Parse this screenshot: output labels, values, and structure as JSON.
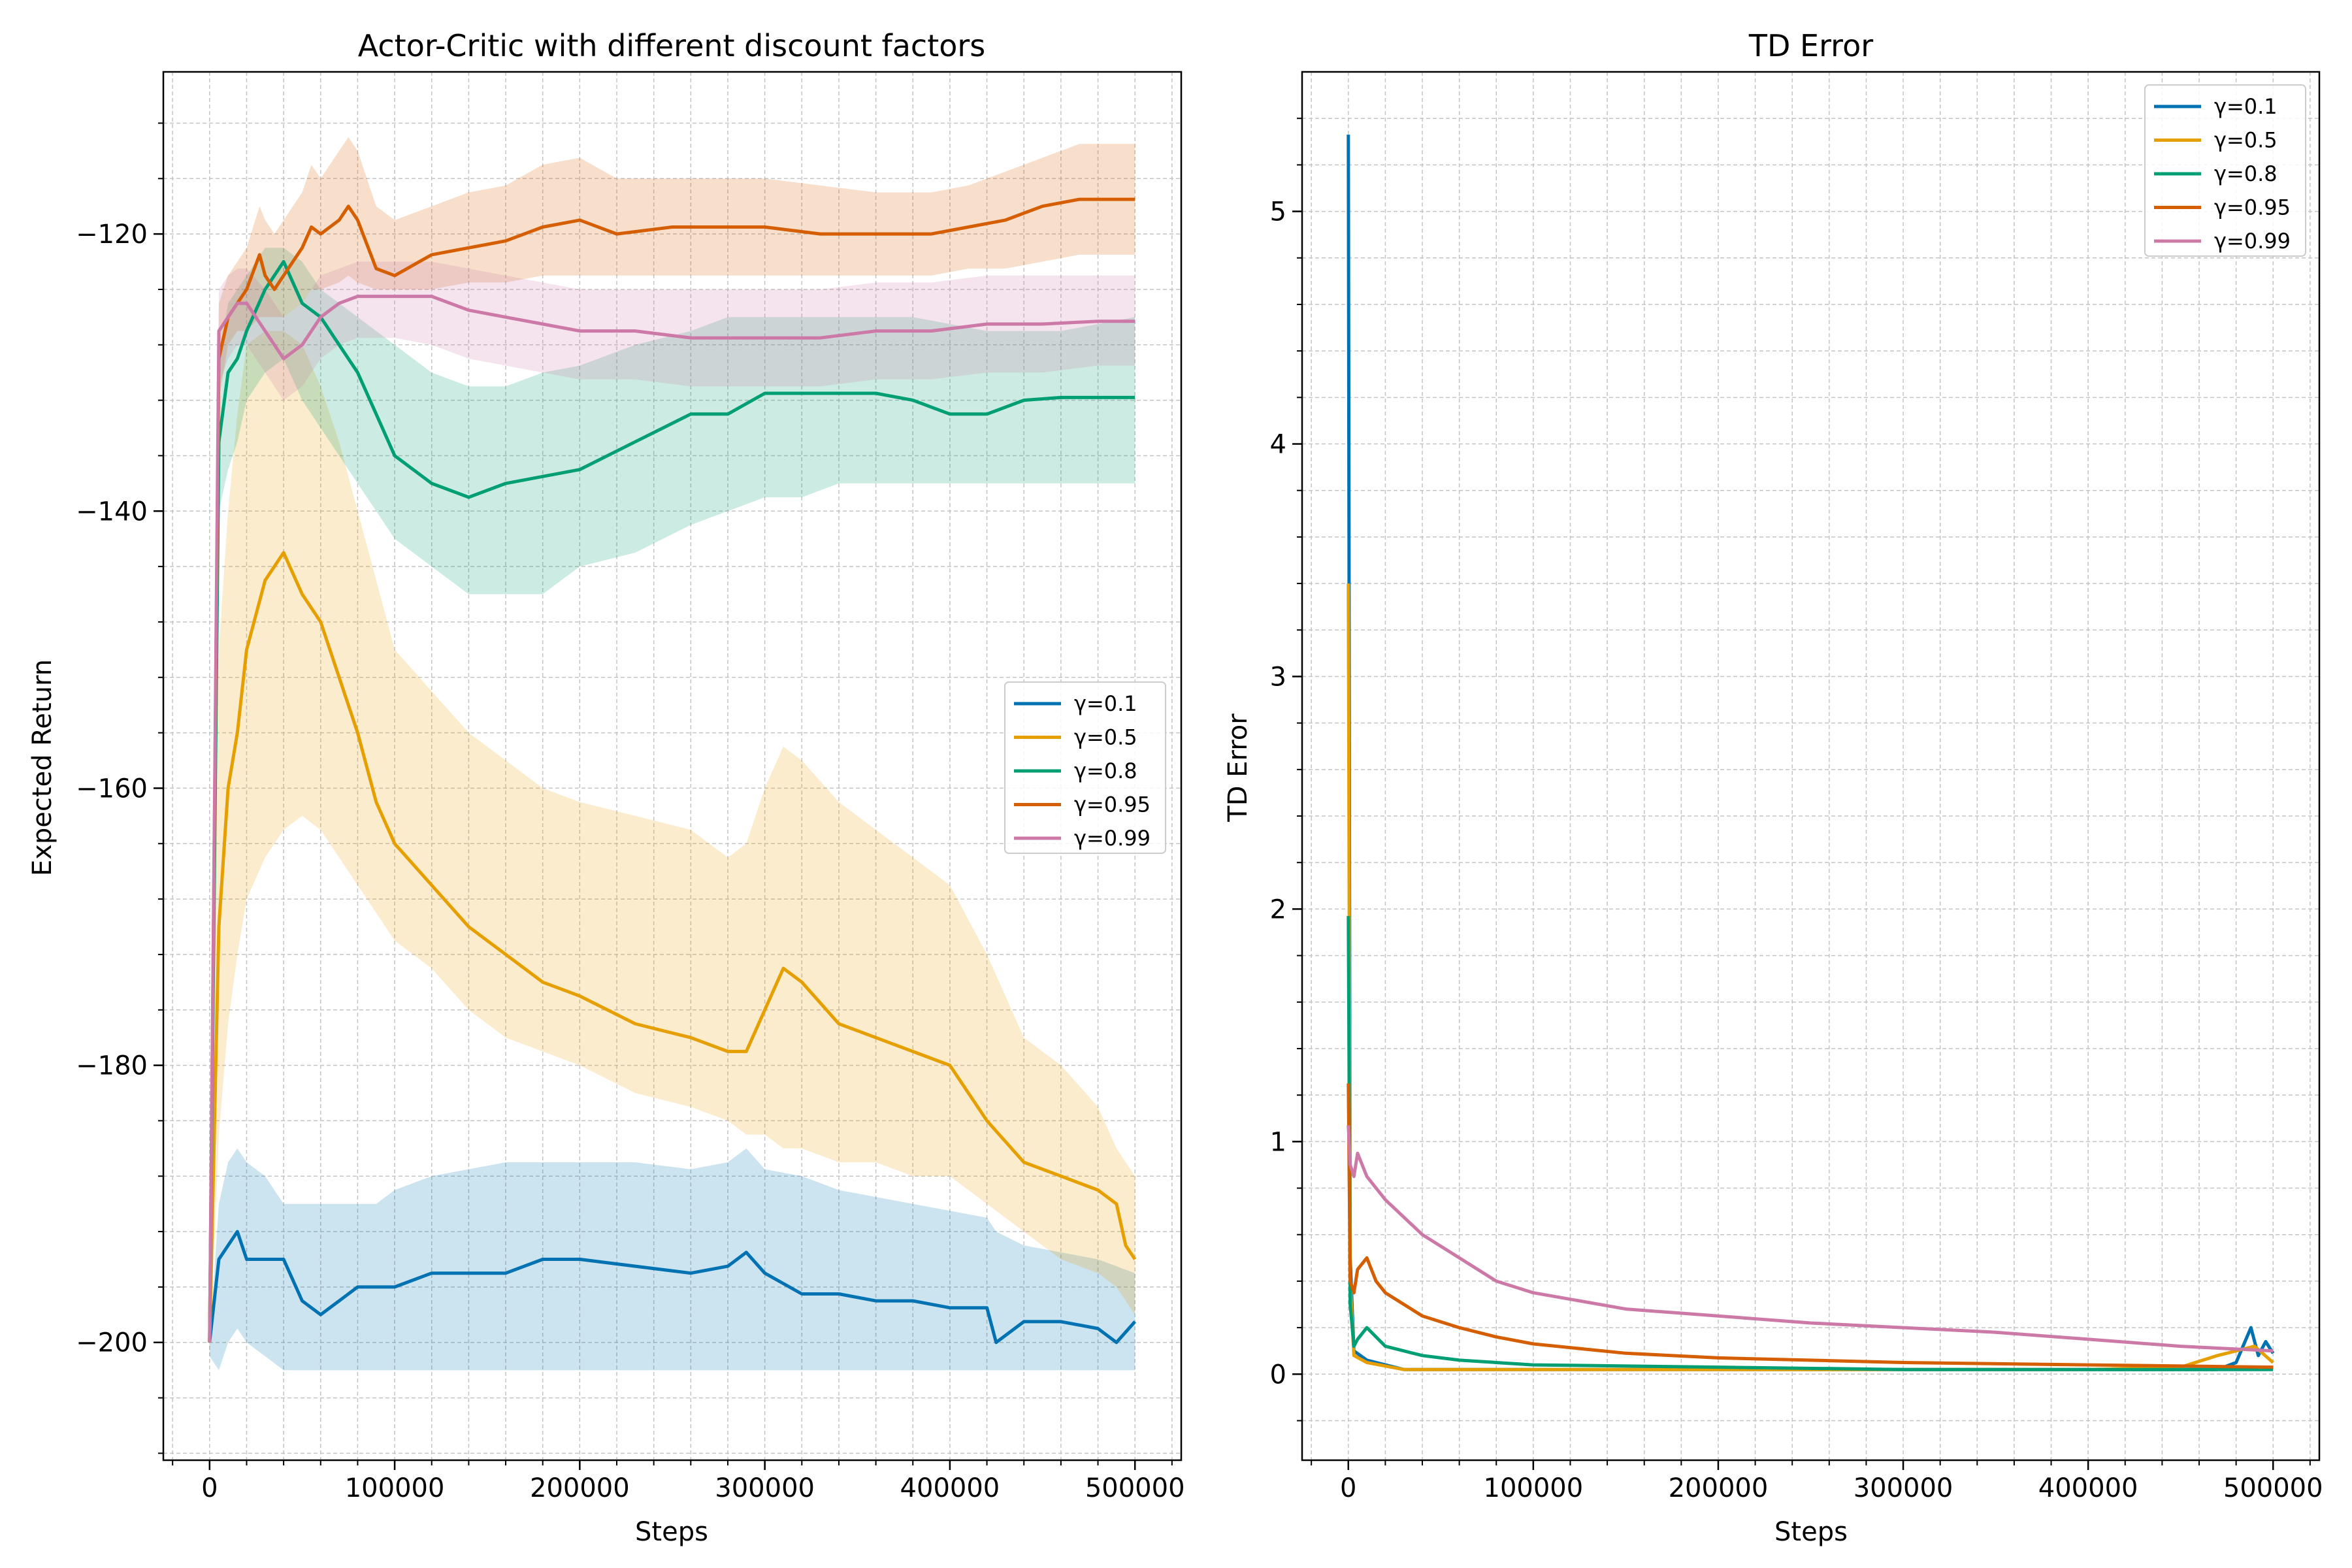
{
  "chart_data": [
    {
      "type": "line",
      "title": "Actor-Critic with different discount factors",
      "xlabel": "Steps",
      "ylabel": "Expected Return",
      "xlim": [
        -25000,
        525000
      ],
      "ylim": [
        -208.5,
        -108.3
      ],
      "xticks": [
        0,
        100000,
        200000,
        300000,
        400000,
        500000
      ],
      "yticks": [
        -120,
        -140,
        -160,
        -180,
        -200
      ],
      "grid": true,
      "minor_ticks": true,
      "legend_position": "center-right",
      "shaded_band": true,
      "series": [
        {
          "name": "γ=0.1",
          "color": "#0072b2",
          "x": [
            0,
            5000,
            10000,
            15000,
            20000,
            30000,
            40000,
            50000,
            60000,
            70000,
            80000,
            90000,
            100000,
            120000,
            140000,
            160000,
            180000,
            200000,
            230000,
            260000,
            280000,
            290000,
            300000,
            320000,
            340000,
            360000,
            380000,
            400000,
            420000,
            425000,
            440000,
            460000,
            480000,
            490000,
            500000
          ],
          "y": [
            -200,
            -194,
            -193,
            -192,
            -194,
            -194,
            -194,
            -197,
            -198,
            -197,
            -196,
            -196,
            -196,
            -195,
            -195,
            -195,
            -194,
            -194,
            -194.5,
            -195,
            -194.5,
            -193.5,
            -195,
            -196.5,
            -196.5,
            -197,
            -197,
            -197.5,
            -197.5,
            -200,
            -198.5,
            -198.5,
            -199,
            -200,
            -198.5
          ],
          "band_low": [
            -201,
            -202,
            -200,
            -199,
            -200,
            -201,
            -202,
            -202,
            -202,
            -202,
            -202,
            -202,
            -202,
            -202,
            -202,
            -202,
            -202,
            -202,
            -202,
            -202,
            -202,
            -202,
            -202,
            -202,
            -202,
            -202,
            -202,
            -202,
            -202,
            -202,
            -202,
            -202,
            -202,
            -202,
            -202
          ],
          "band_high": [
            -200,
            -190,
            -187,
            -186,
            -187,
            -188,
            -190,
            -190,
            -190,
            -190,
            -190,
            -190,
            -189,
            -188,
            -187.5,
            -187,
            -187,
            -187,
            -187,
            -187.5,
            -187,
            -186,
            -187.5,
            -188,
            -189,
            -189.5,
            -190,
            -190.5,
            -191,
            -192,
            -193,
            -193.5,
            -194,
            -194.5,
            -195
          ]
        },
        {
          "name": "γ=0.5",
          "color": "#e69f00",
          "x": [
            0,
            5000,
            10000,
            15000,
            20000,
            30000,
            40000,
            50000,
            60000,
            70000,
            80000,
            90000,
            100000,
            120000,
            140000,
            160000,
            180000,
            200000,
            230000,
            260000,
            280000,
            290000,
            300000,
            310000,
            320000,
            340000,
            360000,
            380000,
            400000,
            420000,
            440000,
            460000,
            480000,
            490000,
            495000,
            500000
          ],
          "y": [
            -200,
            -170,
            -160,
            -156,
            -150,
            -145,
            -143,
            -146,
            -148,
            -152,
            -156,
            -161,
            -164,
            -167,
            -170,
            -172,
            -174,
            -175,
            -177,
            -178,
            -179,
            -179,
            -176,
            -173,
            -174,
            -177,
            -178,
            -179,
            -180,
            -184,
            -187,
            -188,
            -189,
            -190,
            -193,
            -194
          ],
          "band_low": [
            -201,
            -185,
            -177,
            -172,
            -168,
            -165,
            -163,
            -162,
            -163,
            -165,
            -167,
            -169,
            -171,
            -173,
            -176,
            -178,
            -179,
            -180,
            -182,
            -183,
            -184,
            -185,
            -185,
            -186,
            -186,
            -187,
            -187,
            -188,
            -188,
            -190,
            -192,
            -194,
            -195,
            -196,
            -197,
            -198
          ],
          "band_high": [
            -200,
            -150,
            -140,
            -133,
            -128,
            -127,
            -127,
            -128,
            -131,
            -135,
            -140,
            -145,
            -150,
            -153,
            -156,
            -158,
            -160,
            -161,
            -162,
            -163,
            -165,
            -164,
            -160,
            -157,
            -158,
            -161,
            -163,
            -165,
            -167,
            -172,
            -178,
            -180,
            -183,
            -186,
            -187,
            -188
          ]
        },
        {
          "name": "γ=0.8",
          "color": "#009e73",
          "x": [
            0,
            5000,
            10000,
            15000,
            20000,
            30000,
            40000,
            50000,
            60000,
            70000,
            80000,
            90000,
            100000,
            120000,
            140000,
            160000,
            180000,
            200000,
            230000,
            260000,
            280000,
            300000,
            320000,
            340000,
            360000,
            380000,
            400000,
            420000,
            440000,
            460000,
            480000,
            500000
          ],
          "y": [
            -200,
            -135,
            -130,
            -129,
            -127,
            -124,
            -122,
            -125,
            -126,
            -128,
            -130,
            -133,
            -136,
            -138,
            -139,
            -138,
            -137.5,
            -137,
            -135,
            -133,
            -133,
            -131.5,
            -131.5,
            -131.5,
            -131.5,
            -132,
            -133,
            -133,
            -132,
            -131.8,
            -131.8,
            -131.8
          ],
          "band_low": [
            -201,
            -140,
            -137,
            -135,
            -132,
            -130,
            -129,
            -132,
            -134,
            -136,
            -138,
            -140,
            -142,
            -144,
            -146,
            -146,
            -146,
            -144,
            -143,
            -141,
            -140,
            -139,
            -139,
            -138,
            -138,
            -138,
            -138,
            -138,
            -138,
            -138,
            -138,
            -138
          ],
          "band_high": [
            -200,
            -129,
            -125,
            -124,
            -123,
            -121,
            -121,
            -122,
            -124,
            -125,
            -126,
            -127,
            -128,
            -130,
            -131,
            -131,
            -130,
            -129.5,
            -128,
            -127,
            -126,
            -126,
            -126,
            -126,
            -126,
            -126,
            -126.5,
            -127,
            -127,
            -127,
            -126.5,
            -126
          ]
        },
        {
          "name": "γ=0.95",
          "color": "#d55e00",
          "x": [
            0,
            5000,
            10000,
            15000,
            20000,
            27000,
            30000,
            35000,
            40000,
            50000,
            55000,
            60000,
            70000,
            75000,
            80000,
            90000,
            100000,
            120000,
            140000,
            160000,
            180000,
            200000,
            220000,
            250000,
            280000,
            300000,
            330000,
            360000,
            390000,
            410000,
            430000,
            450000,
            470000,
            490000,
            500000
          ],
          "y": [
            -200,
            -129,
            -126,
            -125,
            -124,
            -121.5,
            -123,
            -124,
            -123,
            -121,
            -119.5,
            -120,
            -119,
            -118,
            -119,
            -122.5,
            -123,
            -121.5,
            -121,
            -120.5,
            -119.5,
            -119,
            -120,
            -119.5,
            -119.5,
            -119.5,
            -120,
            -120,
            -120,
            -119.5,
            -119,
            -118,
            -117.5,
            -117.5,
            -117.5
          ],
          "band_low": [
            -201,
            -132,
            -128,
            -127,
            -127,
            -126,
            -126,
            -126,
            -126,
            -125,
            -124,
            -124,
            -123.5,
            -123,
            -123.5,
            -124,
            -124,
            -124,
            -123.5,
            -123.5,
            -123,
            -123,
            -123,
            -123,
            -123,
            -123,
            -123,
            -123,
            -123,
            -122.5,
            -122.5,
            -122,
            -121.5,
            -121.5,
            -121.5
          ],
          "band_high": [
            -200,
            -125,
            -123,
            -122,
            -121,
            -118,
            -119,
            -120,
            -119,
            -117,
            -115,
            -116,
            -114,
            -113,
            -114,
            -118,
            -119,
            -118,
            -117,
            -116.5,
            -115,
            -114.5,
            -116,
            -116,
            -116,
            -116,
            -116.5,
            -117,
            -117,
            -116.5,
            -115.5,
            -114.5,
            -113.5,
            -113.5,
            -113.5
          ]
        },
        {
          "name": "γ=0.99",
          "color": "#cc79a7",
          "x": [
            0,
            5000,
            10000,
            15000,
            20000,
            30000,
            40000,
            50000,
            60000,
            70000,
            80000,
            100000,
            120000,
            140000,
            160000,
            180000,
            200000,
            230000,
            260000,
            280000,
            300000,
            330000,
            360000,
            390000,
            420000,
            450000,
            480000,
            500000
          ],
          "y": [
            -200,
            -127,
            -126,
            -125,
            -125,
            -127,
            -129,
            -128,
            -126,
            -125,
            -124.5,
            -124.5,
            -124.5,
            -125.5,
            -126,
            -126.5,
            -127,
            -127,
            -127.5,
            -127.5,
            -127.5,
            -127.5,
            -127,
            -127,
            -126.5,
            -126.5,
            -126.3,
            -126.3
          ],
          "band_low": [
            -201,
            -131,
            -129,
            -128,
            -128,
            -130,
            -132,
            -131,
            -129,
            -128,
            -127.5,
            -127.5,
            -128,
            -129,
            -129.5,
            -130,
            -130.5,
            -130.5,
            -131,
            -131,
            -131,
            -131,
            -130.5,
            -130.5,
            -130,
            -130,
            -129.5,
            -129.5
          ],
          "band_high": [
            -200,
            -124,
            -123,
            -122.5,
            -122.5,
            -124,
            -126,
            -125,
            -123,
            -122.5,
            -122,
            -122,
            -122,
            -122.5,
            -123,
            -123.5,
            -124,
            -124,
            -124,
            -124,
            -124,
            -124,
            -123.5,
            -123.5,
            -123,
            -123,
            -123,
            -123
          ]
        }
      ]
    },
    {
      "type": "line",
      "title": "TD Error",
      "xlabel": "Steps",
      "ylabel": "TD Error",
      "xlim": [
        -25000,
        525000
      ],
      "ylim": [
        -0.37,
        5.6
      ],
      "xticks": [
        0,
        100000,
        200000,
        300000,
        400000,
        500000
      ],
      "yticks": [
        0,
        1,
        2,
        3,
        4,
        5
      ],
      "grid": true,
      "minor_ticks": true,
      "legend_position": "top-right",
      "series": [
        {
          "name": "γ=0.1",
          "color": "#0072b2",
          "x": [
            0,
            1000,
            3000,
            10000,
            30000,
            60000,
            100000,
            200000,
            300000,
            400000,
            470000,
            480000,
            488000,
            492000,
            496000,
            500000
          ],
          "y": [
            5.33,
            0.5,
            0.1,
            0.06,
            0.02,
            0.02,
            0.02,
            0.02,
            0.02,
            0.02,
            0.02,
            0.05,
            0.2,
            0.08,
            0.14,
            0.09
          ]
        },
        {
          "name": "γ=0.5",
          "color": "#e69f00",
          "x": [
            0,
            1000,
            3000,
            10000,
            30000,
            60000,
            100000,
            200000,
            300000,
            400000,
            450000,
            470000,
            490000,
            500000
          ],
          "y": [
            3.4,
            0.4,
            0.08,
            0.05,
            0.02,
            0.02,
            0.02,
            0.02,
            0.02,
            0.02,
            0.03,
            0.08,
            0.12,
            0.05
          ]
        },
        {
          "name": "γ=0.8",
          "color": "#009e73",
          "x": [
            0,
            1000,
            3000,
            5000,
            10000,
            20000,
            40000,
            60000,
            100000,
            200000,
            300000,
            400000,
            500000
          ],
          "y": [
            1.97,
            0.3,
            0.12,
            0.15,
            0.2,
            0.12,
            0.08,
            0.06,
            0.04,
            0.03,
            0.02,
            0.02,
            0.02
          ]
        },
        {
          "name": "γ=0.95",
          "color": "#d55e00",
          "x": [
            0,
            1000,
            3000,
            5000,
            10000,
            15000,
            20000,
            30000,
            40000,
            60000,
            80000,
            100000,
            150000,
            200000,
            300000,
            400000,
            500000
          ],
          "y": [
            1.25,
            0.4,
            0.35,
            0.45,
            0.5,
            0.4,
            0.35,
            0.3,
            0.25,
            0.2,
            0.16,
            0.13,
            0.09,
            0.07,
            0.05,
            0.04,
            0.03
          ]
        },
        {
          "name": "γ=0.99",
          "color": "#cc79a7",
          "x": [
            0,
            1000,
            3000,
            5000,
            10000,
            20000,
            40000,
            60000,
            80000,
            100000,
            150000,
            200000,
            250000,
            300000,
            350000,
            400000,
            450000,
            500000
          ],
          "y": [
            1.07,
            0.9,
            0.85,
            0.95,
            0.85,
            0.75,
            0.6,
            0.5,
            0.4,
            0.35,
            0.28,
            0.25,
            0.22,
            0.2,
            0.18,
            0.15,
            0.12,
            0.1
          ]
        }
      ]
    }
  ]
}
